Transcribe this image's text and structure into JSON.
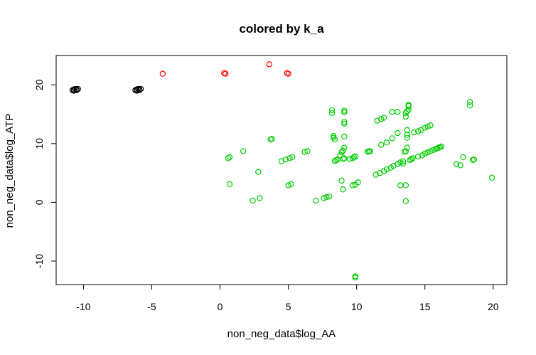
{
  "chart_data": {
    "type": "scatter",
    "title": "colored by k_a",
    "xlabel": "non_neg_data$log_AA",
    "ylabel": "non_neg_data$log_ATP",
    "xlim": [
      -12,
      21
    ],
    "ylim": [
      -14,
      25
    ],
    "xticks": [
      -10,
      -5,
      0,
      5,
      10,
      15,
      20
    ],
    "yticks": [
      -10,
      0,
      10,
      20
    ],
    "grid": false,
    "legend": "none",
    "marker": "open-circle",
    "series": [
      {
        "color": "#000000",
        "points": [
          [
            -10.8,
            19.1
          ],
          [
            -10.7,
            19.2
          ],
          [
            -10.6,
            19.3
          ],
          [
            -10.5,
            19.2
          ],
          [
            -10.4,
            19.3
          ],
          [
            -10.7,
            19.0
          ],
          [
            -10.5,
            19.1
          ],
          [
            -6.2,
            19.1
          ],
          [
            -6.1,
            19.2
          ],
          [
            -6.0,
            19.3
          ],
          [
            -5.9,
            19.2
          ],
          [
            -5.8,
            19.3
          ],
          [
            -6.1,
            19.0
          ],
          [
            -5.9,
            19.1
          ]
        ]
      },
      {
        "color": "#ff0000",
        "points": [
          [
            -4.2,
            21.9
          ],
          [
            0.3,
            22.0
          ],
          [
            0.4,
            21.9
          ],
          [
            3.6,
            23.5
          ],
          [
            4.9,
            22.0
          ],
          [
            5.0,
            21.9
          ]
        ]
      },
      {
        "color": "#00cd00",
        "points": [
          [
            0.6,
            7.5
          ],
          [
            0.7,
            7.7
          ],
          [
            0.7,
            3.1
          ],
          [
            1.7,
            8.7
          ],
          [
            2.4,
            0.3
          ],
          [
            2.8,
            5.2
          ],
          [
            2.9,
            0.7
          ],
          [
            3.7,
            10.7
          ],
          [
            3.8,
            10.8
          ],
          [
            4.5,
            7.0
          ],
          [
            4.8,
            7.3
          ],
          [
            5.0,
            2.9
          ],
          [
            5.2,
            3.1
          ],
          [
            5.1,
            7.5
          ],
          [
            5.3,
            7.7
          ],
          [
            6.2,
            8.6
          ],
          [
            6.4,
            8.7
          ],
          [
            7.0,
            0.3
          ],
          [
            7.6,
            0.7
          ],
          [
            7.8,
            0.9
          ],
          [
            8.0,
            1.0
          ],
          [
            8.2,
            15.7
          ],
          [
            8.2,
            15.2
          ],
          [
            8.3,
            11.3
          ],
          [
            8.3,
            11.0
          ],
          [
            8.4,
            10.7
          ],
          [
            8.4,
            7.0
          ],
          [
            8.5,
            7.2
          ],
          [
            8.6,
            7.3
          ],
          [
            8.8,
            8.0
          ],
          [
            8.9,
            8.5
          ],
          [
            8.9,
            3.7
          ],
          [
            9.0,
            2.2
          ],
          [
            9.0,
            8.8
          ],
          [
            9.1,
            9.3
          ],
          [
            9.1,
            15.6
          ],
          [
            9.1,
            15.3
          ],
          [
            9.1,
            13.7
          ],
          [
            9.1,
            13.4
          ],
          [
            9.1,
            11.2
          ],
          [
            9.0,
            7.4
          ],
          [
            9.1,
            7.5
          ],
          [
            9.5,
            7.4
          ],
          [
            9.7,
            7.5
          ],
          [
            9.8,
            7.7
          ],
          [
            9.9,
            7.8
          ],
          [
            9.7,
            2.9
          ],
          [
            9.9,
            3.0
          ],
          [
            10.1,
            3.4
          ],
          [
            9.9,
            -12.6
          ],
          [
            9.9,
            -12.8
          ],
          [
            10.8,
            8.6
          ],
          [
            10.9,
            8.7
          ],
          [
            11.0,
            8.7
          ],
          [
            11.4,
            4.7
          ],
          [
            11.7,
            5.0
          ],
          [
            12.0,
            5.3
          ],
          [
            12.2,
            5.6
          ],
          [
            12.5,
            5.9
          ],
          [
            12.7,
            6.2
          ],
          [
            13.0,
            6.5
          ],
          [
            13.2,
            6.8
          ],
          [
            13.4,
            7.0
          ],
          [
            11.5,
            13.9
          ],
          [
            11.8,
            14.2
          ],
          [
            12.0,
            14.4
          ],
          [
            11.8,
            9.8
          ],
          [
            12.2,
            10.2
          ],
          [
            12.6,
            10.9
          ],
          [
            13.0,
            11.8
          ],
          [
            12.6,
            15.4
          ],
          [
            13.0,
            15.4
          ],
          [
            13.2,
            2.9
          ],
          [
            13.4,
            6.6
          ],
          [
            13.5,
            8.6
          ],
          [
            13.6,
            8.7
          ],
          [
            13.7,
            9.3
          ],
          [
            13.6,
            14.6
          ],
          [
            13.6,
            15.2
          ],
          [
            13.7,
            15.5
          ],
          [
            13.8,
            15.8
          ],
          [
            13.8,
            16.4
          ],
          [
            13.8,
            16.6
          ],
          [
            13.7,
            11.0
          ],
          [
            13.7,
            11.5
          ],
          [
            13.7,
            12.3
          ],
          [
            13.6,
            0.2
          ],
          [
            13.6,
            2.9
          ],
          [
            13.9,
            7.2
          ],
          [
            14.0,
            7.3
          ],
          [
            14.1,
            7.5
          ],
          [
            14.2,
            11.9
          ],
          [
            14.5,
            12.1
          ],
          [
            14.7,
            12.3
          ],
          [
            15.0,
            12.7
          ],
          [
            15.2,
            12.9
          ],
          [
            15.4,
            13.1
          ],
          [
            14.5,
            7.8
          ],
          [
            14.8,
            8.0
          ],
          [
            15.0,
            8.3
          ],
          [
            15.2,
            8.5
          ],
          [
            15.4,
            8.7
          ],
          [
            15.6,
            8.9
          ],
          [
            15.8,
            9.1
          ],
          [
            15.9,
            9.2
          ],
          [
            16.0,
            9.3
          ],
          [
            16.1,
            9.4
          ],
          [
            16.2,
            9.5
          ],
          [
            17.3,
            6.5
          ],
          [
            17.6,
            6.3
          ],
          [
            17.8,
            7.7
          ],
          [
            18.3,
            16.5
          ],
          [
            18.3,
            17.1
          ],
          [
            18.5,
            7.2
          ],
          [
            18.6,
            7.3
          ],
          [
            19.9,
            4.2
          ]
        ]
      }
    ]
  }
}
